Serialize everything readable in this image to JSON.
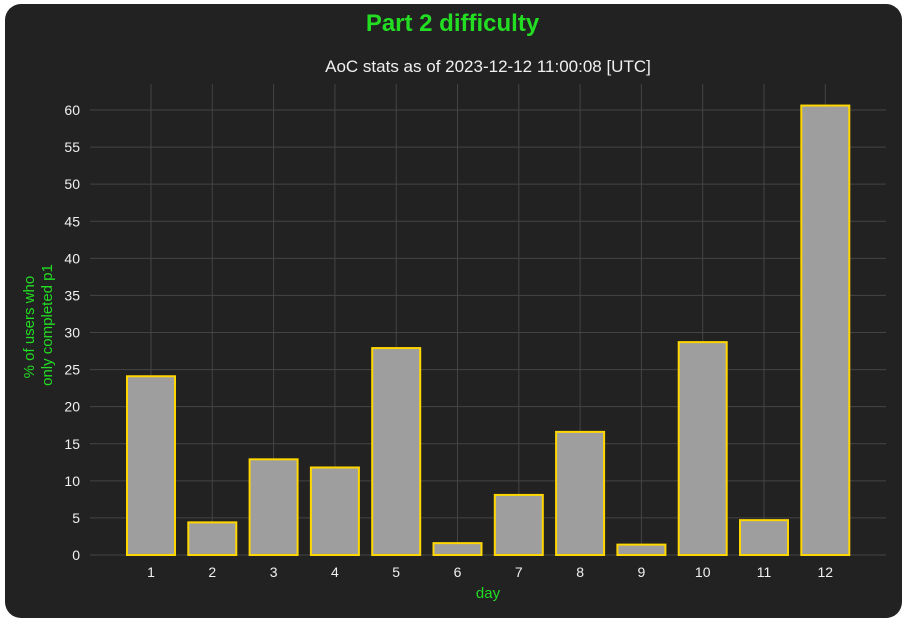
{
  "chart_data": {
    "type": "bar",
    "title": "Part 2 difficulty",
    "subtitle": "AoC stats as of 2023-12-12 11:00:08 [UTC]",
    "xlabel": "day",
    "ylabel_lines": [
      "% of users who",
      "only completed p1"
    ],
    "categories": [
      "1",
      "2",
      "3",
      "4",
      "5",
      "6",
      "7",
      "8",
      "9",
      "10",
      "11",
      "12"
    ],
    "values": [
      24.1,
      4.4,
      12.9,
      11.8,
      27.9,
      1.6,
      8.1,
      16.6,
      1.4,
      28.7,
      4.7,
      60.6
    ],
    "ylim": [
      0,
      64
    ],
    "yticks": [
      0,
      5,
      10,
      15,
      20,
      25,
      30,
      35,
      40,
      45,
      50,
      55,
      60
    ],
    "grid": true,
    "colors": {
      "bar_fill": "#9e9e9e",
      "bar_edge": "#ffd700",
      "background": "#222222",
      "grid": "#444444",
      "accent": "#22dd22",
      "text": "#f0f0f0"
    }
  }
}
